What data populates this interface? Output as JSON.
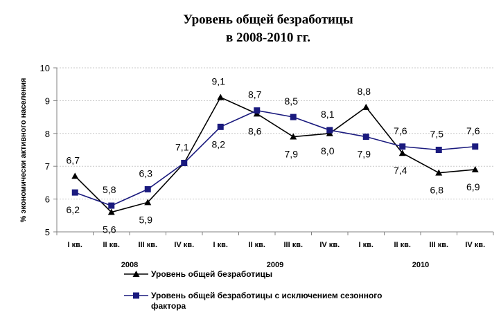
{
  "chart_data": {
    "type": "line",
    "title": [
      "Уровень общей безработицы",
      "в 2008-2010 гг."
    ],
    "ylabel": "% экономически активного населения",
    "ylim": [
      5,
      10
    ],
    "yticks": [
      "5",
      "6",
      "7",
      "8",
      "9",
      "10"
    ],
    "grid": true,
    "categories": [
      "I кв.",
      "II  кв.",
      "III кв.",
      "IV кв.",
      "I кв.",
      "II  кв.",
      "III кв.",
      "IV кв.",
      "I кв.",
      "II  кв.",
      "III кв.",
      "IV кв."
    ],
    "years": [
      {
        "label": "2008",
        "start": 0,
        "end": 3
      },
      {
        "label": "2009",
        "start": 4,
        "end": 7
      },
      {
        "label": "2010",
        "start": 8,
        "end": 11
      }
    ],
    "legend_position": "bottom",
    "series": [
      {
        "name": "Уровень общей безработицы",
        "marker": "triangle",
        "color": "#000000",
        "values": [
          6.7,
          5.6,
          5.9,
          7.1,
          9.1,
          8.6,
          7.9,
          8.0,
          8.8,
          7.4,
          6.8,
          6.9
        ],
        "labels": [
          "6,7",
          "5,6",
          "5,9",
          "7,1",
          "9,1",
          "8,6",
          "7,9",
          "8,0",
          "8,8",
          "7,4",
          "6,8",
          "6,9"
        ]
      },
      {
        "name": "Уровень общей безработицы с исключением сезонного фактора",
        "legend_lines": [
          "Уровень общей безработицы с исключением сезонного",
          "фактора"
        ],
        "marker": "square",
        "color": "#1a1a7e",
        "values": [
          6.2,
          5.8,
          6.3,
          7.1,
          8.2,
          8.7,
          8.5,
          8.1,
          7.9,
          7.6,
          7.5,
          7.6
        ],
        "labels": [
          "6,2",
          "5,8",
          "6,3",
          "",
          "8,2",
          "8,7",
          "8,5",
          "8,1",
          "7,9",
          "7,6",
          "7,5",
          "7,6"
        ]
      }
    ]
  }
}
